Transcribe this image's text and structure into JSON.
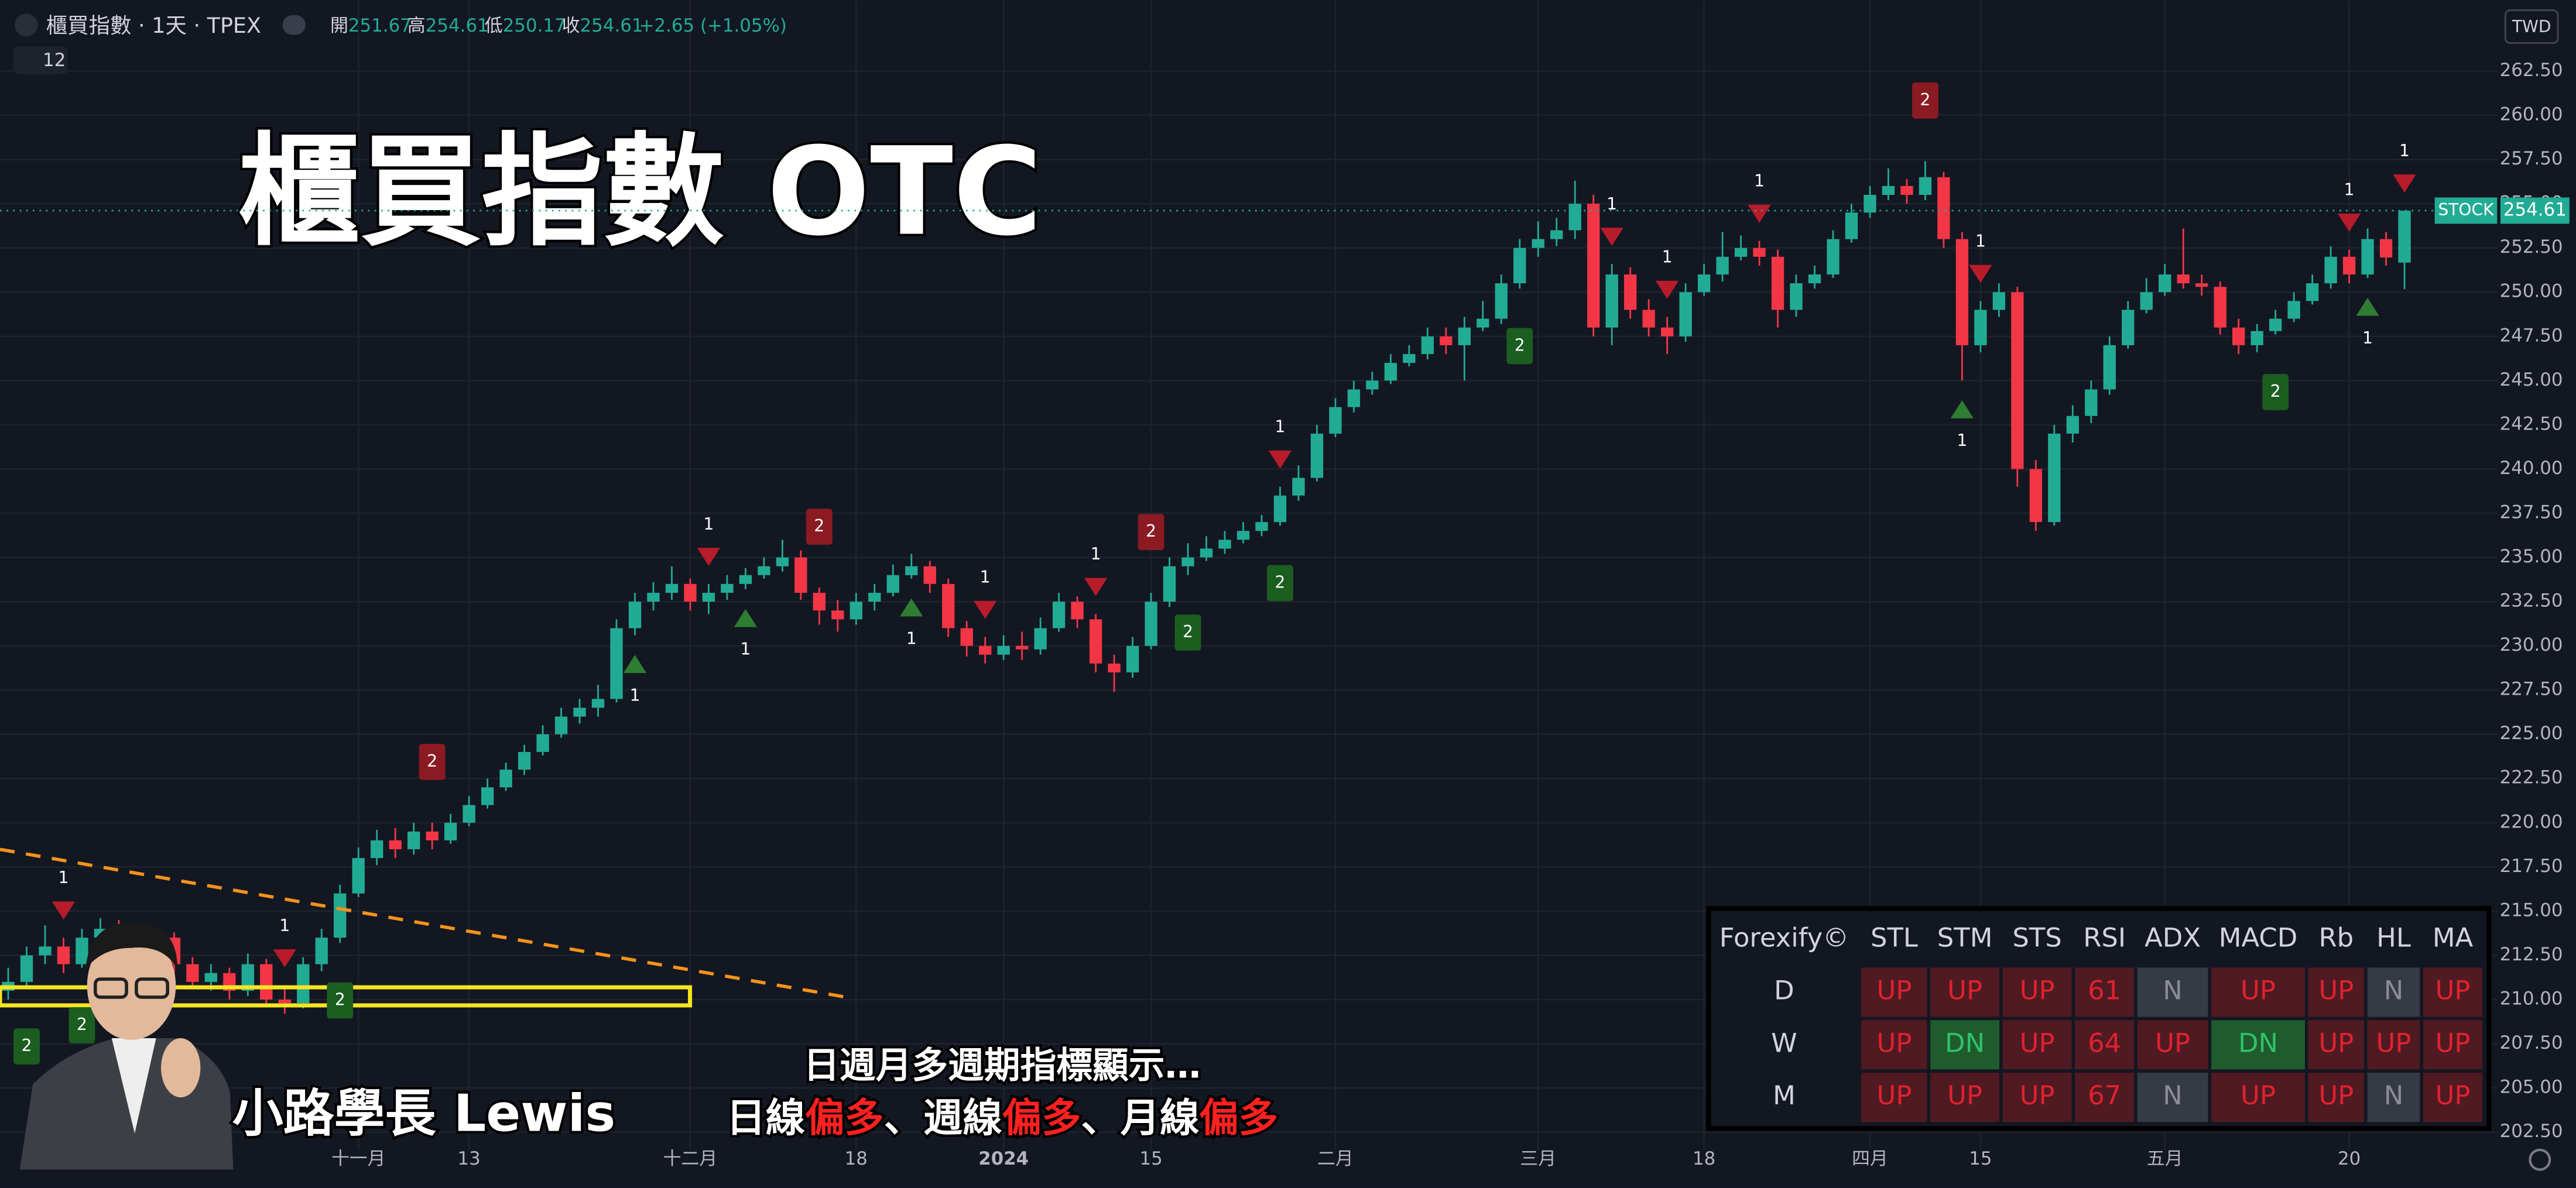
{
  "chart_data": {
    "type": "candlestick",
    "symbol": "櫃買指數 · 1天 · TPEX",
    "ohlc_labels": [
      "開",
      "高",
      "低",
      "收"
    ],
    "ohlc_values": [
      {
        "value": 251.67,
        "label": "251.67"
      },
      {
        "value": 254.61,
        "label": "254.61"
      },
      {
        "value": 250.17,
        "label": "250.17"
      },
      {
        "value": 254.61,
        "label": "254.61"
      }
    ],
    "change": "+2.65 (+1.05%)",
    "indicator_count": "12",
    "currency": "TWD",
    "price_tag_name": "STOCK",
    "last_price": {
      "value": 254.61,
      "label": "254.61"
    },
    "title": "櫃買指數 OTC",
    "presenter": "小路學長 Lewis",
    "caption_line1": "日週月多週期指標顯示…",
    "caption_line2": [
      "日線",
      "偏多",
      "、週線",
      "偏多",
      "、月線",
      "偏多"
    ],
    "up_color": "#22ab94",
    "down_color": "#f23645",
    "ylim": [
      201.5,
      266.5
    ],
    "yticks": [
      {
        "value": 262.5,
        "label": "262.50"
      },
      {
        "value": 260,
        "label": "260.00"
      },
      {
        "value": 257.5,
        "label": "257.50"
      },
      {
        "value": 255,
        "label": "255.00"
      },
      {
        "value": 252.5,
        "label": "252.50"
      },
      {
        "value": 250,
        "label": "250.00"
      },
      {
        "value": 247.5,
        "label": "247.50"
      },
      {
        "value": 245,
        "label": "245.00"
      },
      {
        "value": 242.5,
        "label": "242.50"
      },
      {
        "value": 240,
        "label": "240.00"
      },
      {
        "value": 237.5,
        "label": "237.50"
      },
      {
        "value": 235,
        "label": "235.00"
      },
      {
        "value": 232.5,
        "label": "232.50"
      },
      {
        "value": 230,
        "label": "230.00"
      },
      {
        "value": 227.5,
        "label": "227.50"
      },
      {
        "value": 225,
        "label": "225.00"
      },
      {
        "value": 222.5,
        "label": "222.50"
      },
      {
        "value": 220,
        "label": "220.00"
      },
      {
        "value": 217.5,
        "label": "217.50"
      },
      {
        "value": 215,
        "label": "215.00"
      },
      {
        "value": 212.5,
        "label": "212.50"
      },
      {
        "value": 210,
        "label": "210.00"
      },
      {
        "value": 207.5,
        "label": "207.50"
      },
      {
        "value": 205,
        "label": "205.00"
      },
      {
        "value": 202.5,
        "label": "202.50"
      }
    ],
    "grid": true,
    "categories": [
      null,
      null,
      null,
      null,
      null,
      null,
      null,
      null,
      null,
      null,
      null,
      null,
      null,
      null,
      null,
      null,
      null,
      null,
      null,
      "十一月",
      null,
      null,
      null,
      null,
      null,
      "13",
      null,
      null,
      null,
      null,
      null,
      null,
      null,
      null,
      null,
      null,
      null,
      "十二月",
      null,
      null,
      null,
      null,
      null,
      null,
      null,
      null,
      "18",
      null,
      null,
      null,
      null,
      null,
      null,
      null,
      "2024",
      null,
      null,
      null,
      null,
      null,
      null,
      null,
      "15",
      null,
      null,
      null,
      null,
      null,
      null,
      null,
      null,
      null,
      "二月",
      null,
      null,
      null,
      null,
      null,
      null,
      null,
      null,
      null,
      null,
      "三月",
      null,
      null,
      null,
      null,
      null,
      null,
      null,
      null,
      "18",
      null,
      null,
      null,
      null,
      null,
      null,
      null,
      null,
      "四月",
      null,
      null,
      null,
      null,
      null,
      "15",
      null,
      null,
      null,
      null,
      null,
      null,
      null,
      null,
      null,
      "五月",
      null,
      null,
      null,
      null,
      null,
      null,
      null,
      null,
      null,
      "20",
      null,
      null,
      null
    ],
    "candles": [
      [
        210.5,
        211.8,
        210,
        211
      ],
      [
        211,
        213,
        210.6,
        212.5
      ],
      [
        212.5,
        214.2,
        212,
        213
      ],
      [
        213,
        213.5,
        211.5,
        212
      ],
      [
        212,
        214,
        211.8,
        213.5
      ],
      [
        213.5,
        214.6,
        213,
        214
      ],
      [
        214,
        214.5,
        212.5,
        213
      ],
      [
        213,
        213.6,
        212,
        212.5
      ],
      [
        212.5,
        214,
        212.2,
        213.5
      ],
      [
        213.5,
        213.8,
        211.5,
        212
      ],
      [
        212,
        212.4,
        210.6,
        211
      ],
      [
        211,
        212,
        210.5,
        211.5
      ],
      [
        211.5,
        211.8,
        210,
        210.5
      ],
      [
        210.5,
        212.6,
        210.2,
        212
      ],
      [
        212,
        212.3,
        209.6,
        210
      ],
      [
        210,
        210.8,
        209.2,
        209.8
      ],
      [
        209.8,
        212.4,
        209.5,
        212
      ],
      [
        212,
        214,
        211.6,
        213.5
      ],
      [
        213.5,
        216.5,
        213.2,
        216
      ],
      [
        216,
        218.6,
        215.8,
        218
      ],
      [
        218,
        219.6,
        217.6,
        219
      ],
      [
        219,
        219.7,
        218,
        218.5
      ],
      [
        218.5,
        220,
        218.2,
        219.5
      ],
      [
        219.5,
        220,
        218.5,
        219
      ],
      [
        219,
        220.5,
        218.8,
        220
      ],
      [
        220,
        221.5,
        219.8,
        221
      ],
      [
        221,
        222.5,
        220.8,
        222
      ],
      [
        222,
        223.4,
        221.8,
        223
      ],
      [
        223,
        224.4,
        222.7,
        224
      ],
      [
        224,
        225.5,
        223.8,
        225
      ],
      [
        225,
        226.5,
        224.8,
        226
      ],
      [
        226,
        227,
        225.6,
        226.5
      ],
      [
        226.5,
        227.8,
        226,
        227
      ],
      [
        227,
        231.5,
        226.8,
        231
      ],
      [
        231,
        233,
        230.6,
        232.5
      ],
      [
        232.5,
        233.6,
        232,
        233
      ],
      [
        233,
        234.5,
        232.6,
        233.5
      ],
      [
        233.5,
        233.8,
        232,
        232.5
      ],
      [
        232.5,
        233.5,
        231.8,
        233
      ],
      [
        233,
        234,
        232.6,
        233.5
      ],
      [
        233.5,
        234.4,
        233.2,
        234
      ],
      [
        234,
        235,
        233.8,
        234.5
      ],
      [
        234.5,
        236,
        234.2,
        235
      ],
      [
        235,
        235.4,
        232.6,
        233
      ],
      [
        233,
        233.3,
        231.2,
        232
      ],
      [
        232,
        232.6,
        230.8,
        231.5
      ],
      [
        231.5,
        233,
        231.2,
        232.5
      ],
      [
        232.5,
        233.5,
        232,
        233
      ],
      [
        233,
        234.6,
        232.8,
        234
      ],
      [
        234,
        235.2,
        233.8,
        234.5
      ],
      [
        234.5,
        234.8,
        233,
        233.5
      ],
      [
        233.5,
        233.8,
        230.5,
        231
      ],
      [
        231,
        231.4,
        229.4,
        230
      ],
      [
        230,
        230.5,
        229,
        229.5
      ],
      [
        229.5,
        230.6,
        229.2,
        230
      ],
      [
        230,
        230.8,
        229.2,
        229.8
      ],
      [
        229.8,
        231.6,
        229.5,
        231
      ],
      [
        231,
        233,
        230.8,
        232.5
      ],
      [
        232.5,
        232.8,
        231,
        231.5
      ],
      [
        231.5,
        231.8,
        228.5,
        229
      ],
      [
        229,
        229.5,
        227.4,
        228.5
      ],
      [
        228.5,
        230.5,
        228.2,
        230
      ],
      [
        230,
        233,
        229.8,
        232.5
      ],
      [
        232.5,
        235,
        232.2,
        234.5
      ],
      [
        234.5,
        235.8,
        234,
        235
      ],
      [
        235,
        236.2,
        234.8,
        235.5
      ],
      [
        235.5,
        236.5,
        235.2,
        236
      ],
      [
        236,
        237,
        235.8,
        236.5
      ],
      [
        236.5,
        237.4,
        236.2,
        237
      ],
      [
        237,
        239,
        236.8,
        238.5
      ],
      [
        238.5,
        240.2,
        238.2,
        239.5
      ],
      [
        239.5,
        242.5,
        239.3,
        242
      ],
      [
        242,
        244,
        241.8,
        243.5
      ],
      [
        243.5,
        245,
        243.2,
        244.5
      ],
      [
        244.5,
        245.5,
        244.2,
        245
      ],
      [
        245,
        246.5,
        244.8,
        246
      ],
      [
        246,
        247,
        245.8,
        246.5
      ],
      [
        246.5,
        248,
        246.2,
        247.5
      ],
      [
        247.5,
        248,
        246.5,
        247
      ],
      [
        247,
        248.6,
        245,
        248
      ],
      [
        248,
        249.5,
        247.8,
        248.5
      ],
      [
        248.5,
        251,
        248.2,
        250.5
      ],
      [
        250.5,
        253,
        250.2,
        252.5
      ],
      [
        252.5,
        254,
        252,
        253
      ],
      [
        253,
        254.2,
        252.6,
        253.5
      ],
      [
        253.5,
        256.3,
        253,
        255
      ],
      [
        255,
        255.5,
        247.5,
        248
      ],
      [
        248,
        251.6,
        247,
        251
      ],
      [
        251,
        251.4,
        248.5,
        249
      ],
      [
        249,
        249.6,
        247.5,
        248
      ],
      [
        248,
        248.6,
        246.5,
        247.5
      ],
      [
        247.5,
        250.5,
        247.2,
        250
      ],
      [
        250,
        251.6,
        249.8,
        251
      ],
      [
        251,
        253.4,
        250.6,
        252
      ],
      [
        252,
        253.2,
        251.8,
        252.5
      ],
      [
        252.5,
        252.9,
        251.5,
        252
      ],
      [
        252,
        252.4,
        248,
        249
      ],
      [
        249,
        251,
        248.6,
        250.5
      ],
      [
        250.5,
        251.5,
        250.2,
        251
      ],
      [
        251,
        253.5,
        250.8,
        253
      ],
      [
        253,
        255,
        252.8,
        254.5
      ],
      [
        254.5,
        256,
        254.2,
        255.5
      ],
      [
        255.5,
        257,
        255.2,
        256
      ],
      [
        256,
        256.4,
        255,
        255.5
      ],
      [
        255.5,
        257.4,
        255.2,
        256.5
      ],
      [
        256.5,
        256.8,
        252.5,
        253
      ],
      [
        253,
        253.4,
        245,
        247
      ],
      [
        247,
        249.5,
        246.6,
        249
      ],
      [
        249,
        250.5,
        248.6,
        250
      ],
      [
        250,
        250.3,
        239,
        240
      ],
      [
        240,
        240.5,
        236.5,
        237
      ],
      [
        237,
        242.5,
        236.8,
        242
      ],
      [
        242,
        243.6,
        241.5,
        243
      ],
      [
        243,
        245,
        242.6,
        244.5
      ],
      [
        244.5,
        247.5,
        244.2,
        247
      ],
      [
        247,
        249.5,
        246.8,
        249
      ],
      [
        249,
        250.8,
        248.8,
        250
      ],
      [
        250,
        251.6,
        249.8,
        251
      ],
      [
        251,
        253.6,
        250.2,
        250.5
      ],
      [
        250.5,
        251,
        249.8,
        250.3
      ],
      [
        250.3,
        250.6,
        247.6,
        248
      ],
      [
        248,
        248.5,
        246.5,
        247
      ],
      [
        247,
        248.2,
        246.6,
        247.8
      ],
      [
        247.8,
        249,
        247.6,
        248.5
      ],
      [
        248.5,
        250,
        248.3,
        249.5
      ],
      [
        249.5,
        251,
        249.3,
        250.5
      ],
      [
        250.5,
        252.6,
        250.2,
        252
      ],
      [
        252,
        252.4,
        250.5,
        251
      ],
      [
        251,
        253.6,
        250.8,
        253
      ],
      [
        253,
        253.4,
        251.5,
        251.96
      ],
      [
        251.67,
        254.61,
        250.17,
        254.61
      ]
    ],
    "signals": [
      {
        "index": 3,
        "text": "1",
        "side": "sell"
      },
      {
        "index": 15,
        "text": "1",
        "side": "sell"
      },
      {
        "index": 38,
        "text": "1",
        "side": "sell"
      },
      {
        "index": 53,
        "text": "1",
        "side": "sell"
      },
      {
        "index": 59,
        "text": "1",
        "side": "sell"
      },
      {
        "index": 69,
        "text": "1",
        "side": "sell"
      },
      {
        "index": 87,
        "text": "1",
        "side": "sell"
      },
      {
        "index": 90,
        "text": "1",
        "side": "sell"
      },
      {
        "index": 95,
        "text": "1",
        "side": "sell"
      },
      {
        "index": 107,
        "text": "1",
        "side": "sell"
      },
      {
        "index": 127,
        "text": "1",
        "side": "sell"
      },
      {
        "index": 130,
        "text": "1",
        "side": "sell"
      },
      {
        "index": 23,
        "text": "2",
        "side": "sell"
      },
      {
        "index": 44,
        "text": "2",
        "side": "sell"
      },
      {
        "index": 62,
        "text": "2",
        "side": "sell"
      },
      {
        "index": 104,
        "text": "2",
        "side": "sell"
      },
      {
        "index": 34,
        "text": "1",
        "side": "buy"
      },
      {
        "index": 40,
        "text": "1",
        "side": "buy"
      },
      {
        "index": 49,
        "text": "1",
        "side": "buy"
      },
      {
        "index": 106,
        "text": "1",
        "side": "buy"
      },
      {
        "index": 128,
        "text": "1",
        "side": "buy"
      },
      {
        "index": 1,
        "text": "2",
        "side": "buy"
      },
      {
        "index": 4,
        "text": "2",
        "side": "buy"
      },
      {
        "index": 18,
        "text": "2",
        "side": "buy"
      },
      {
        "index": 64,
        "text": "2",
        "side": "buy"
      },
      {
        "index": 69,
        "text": "2",
        "side": "buy"
      },
      {
        "index": 82,
        "text": "2",
        "side": "buy"
      },
      {
        "index": 123,
        "text": "2",
        "side": "buy"
      }
    ]
  },
  "table": {
    "header": [
      "Forexify©",
      "STL",
      "STM",
      "STS",
      "RSI",
      "ADX",
      "MACD",
      "Rb",
      "HL",
      "MA"
    ],
    "rows": [
      [
        "D",
        "UP",
        "UP",
        "UP",
        61,
        "N",
        "UP",
        "UP",
        "N",
        "UP"
      ],
      [
        "W",
        "UP",
        "DN",
        "UP",
        64,
        "UP",
        "DN",
        "UP",
        "UP",
        "UP"
      ],
      [
        "M",
        "UP",
        "UP",
        "UP",
        67,
        "N",
        "UP",
        "UP",
        "N",
        "UP"
      ]
    ]
  }
}
